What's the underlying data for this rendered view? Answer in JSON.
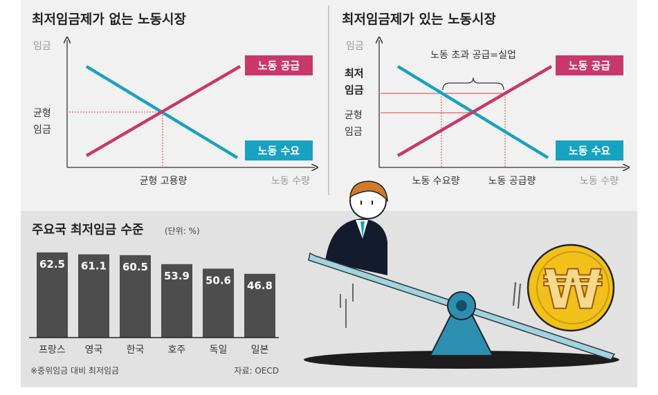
{
  "colors": {
    "panel_top": "#f1f1f1",
    "panel_bottom": "#e2e2e2",
    "supply": "#c9386b",
    "demand": "#17a2c2",
    "axis": "#333333",
    "bar": "#4d4d4d",
    "red_line": "#d6413f",
    "coin": "#f2c01a"
  },
  "chart_data": [
    {
      "type": "line",
      "title": "최저임금제가 없는 노동시장",
      "ylabel": "임금",
      "xlabel": "노동 수량",
      "series": [
        {
          "name": "노동 공급",
          "role": "supply",
          "slope": "up"
        },
        {
          "name": "노동 수요",
          "role": "demand",
          "slope": "down"
        }
      ],
      "annotations": {
        "equilibrium_wage": "균형 임금",
        "equilibrium_wage_line1": "균형",
        "equilibrium_wage_line2": "임금",
        "equilibrium_quantity": "균형 고용량"
      }
    },
    {
      "type": "line",
      "title": "최저임금제가 있는 노동시장",
      "ylabel": "임금",
      "xlabel": "노동 수량",
      "series": [
        {
          "name": "노동 공급",
          "role": "supply",
          "slope": "up"
        },
        {
          "name": "노동 수요",
          "role": "demand",
          "slope": "down"
        }
      ],
      "annotations": {
        "minimum_wage_line1": "최저",
        "minimum_wage_line2": "임금",
        "equilibrium_wage_line1": "균형",
        "equilibrium_wage_line2": "임금",
        "excess_supply": "노동 초과 공급=실업",
        "labor_demanded": "노동 수요량",
        "labor_supplied": "노동 공급량"
      }
    },
    {
      "type": "bar",
      "title": "주요국 최저임금 수준",
      "unit_note": "(단위: %)",
      "categories": [
        "프랑스",
        "영국",
        "한국",
        "호주",
        "독일",
        "일본"
      ],
      "values": [
        62.5,
        61.1,
        60.5,
        53.9,
        50.6,
        46.8
      ],
      "ylim": [
        0,
        66
      ],
      "footnote": "※중위임금 대비 최저임금",
      "source": "자료: OECD"
    }
  ],
  "illustration": {
    "description_icon": "seesaw-icon",
    "coin_symbol": "₩"
  }
}
